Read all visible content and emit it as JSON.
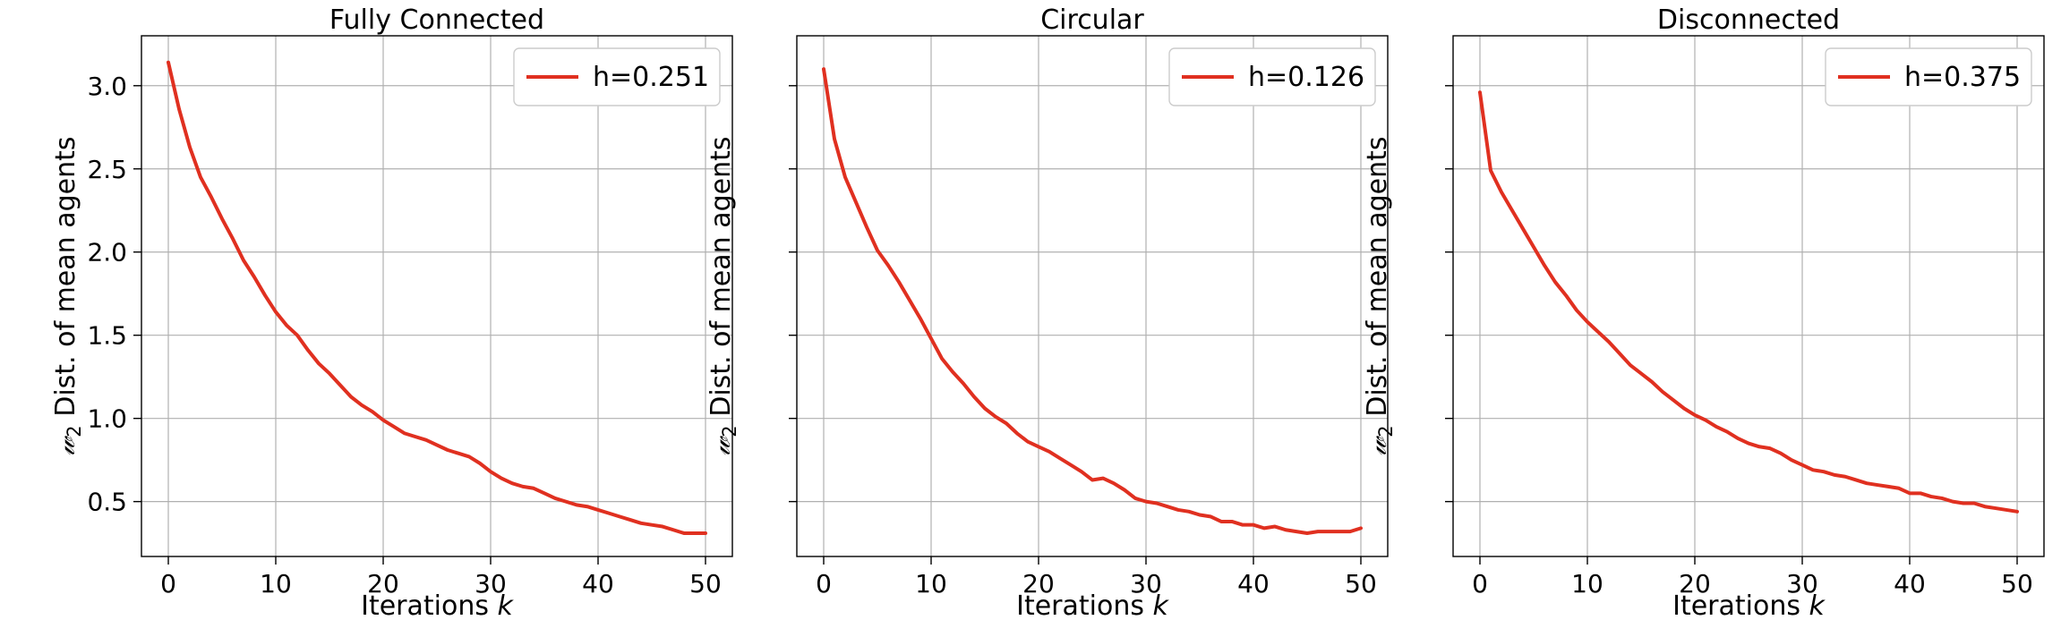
{
  "chart_data": [
    {
      "type": "line",
      "title": "Fully Connected",
      "xlabel": "Iterations k",
      "xlabel_main": "Iterations ",
      "xlabel_var": "k",
      "ylabel": "𝓌2 Dist. of mean agents",
      "ylabel_symbol": "𝓌",
      "ylabel_sub": "2",
      "ylabel_rest": " Dist. of mean agents",
      "xlim": [
        -2.5,
        52.5
      ],
      "ylim": [
        0.17,
        3.3
      ],
      "xticks": [
        0,
        10,
        20,
        30,
        40,
        50
      ],
      "yticks": [
        0.5,
        1.0,
        1.5,
        2.0,
        2.5,
        3.0
      ],
      "ytick_labels": [
        "0.5",
        "1.0",
        "1.5",
        "2.0",
        "2.5",
        "3.0"
      ],
      "show_ytick_labels": true,
      "grid": true,
      "legend_position": "upper right",
      "series": [
        {
          "name": "h=0.251",
          "color": "#e03020",
          "x": [
            0,
            1,
            2,
            3,
            4,
            5,
            6,
            7,
            8,
            9,
            10,
            11,
            12,
            13,
            14,
            15,
            16,
            17,
            18,
            19,
            20,
            21,
            22,
            23,
            24,
            25,
            26,
            27,
            28,
            29,
            30,
            31,
            32,
            33,
            34,
            35,
            36,
            37,
            38,
            39,
            40,
            41,
            42,
            43,
            44,
            45,
            46,
            47,
            48,
            49,
            50
          ],
          "y": [
            3.14,
            2.86,
            2.63,
            2.45,
            2.33,
            2.2,
            2.08,
            1.95,
            1.85,
            1.74,
            1.64,
            1.56,
            1.5,
            1.41,
            1.33,
            1.27,
            1.2,
            1.13,
            1.08,
            1.04,
            0.99,
            0.95,
            0.91,
            0.89,
            0.87,
            0.84,
            0.81,
            0.79,
            0.77,
            0.73,
            0.68,
            0.64,
            0.61,
            0.59,
            0.58,
            0.55,
            0.52,
            0.5,
            0.48,
            0.47,
            0.45,
            0.43,
            0.41,
            0.39,
            0.37,
            0.36,
            0.35,
            0.33,
            0.31,
            0.31,
            0.31
          ]
        }
      ]
    },
    {
      "type": "line",
      "title": "Circular",
      "xlabel": "Iterations k",
      "xlabel_main": "Iterations ",
      "xlabel_var": "k",
      "ylabel": "𝓌2 Dist. of mean agents",
      "ylabel_symbol": "𝓌",
      "ylabel_sub": "2",
      "ylabel_rest": " Dist. of mean agents",
      "xlim": [
        -2.5,
        52.5
      ],
      "ylim": [
        0.17,
        3.3
      ],
      "xticks": [
        0,
        10,
        20,
        30,
        40,
        50
      ],
      "yticks": [
        0.5,
        1.0,
        1.5,
        2.0,
        2.5,
        3.0
      ],
      "ytick_labels": [
        "0.5",
        "1.0",
        "1.5",
        "2.0",
        "2.5",
        "3.0"
      ],
      "show_ytick_labels": false,
      "grid": true,
      "legend_position": "upper right",
      "series": [
        {
          "name": "h=0.126",
          "color": "#e03020",
          "x": [
            0,
            1,
            2,
            3,
            4,
            5,
            6,
            7,
            8,
            9,
            10,
            11,
            12,
            13,
            14,
            15,
            16,
            17,
            18,
            19,
            20,
            21,
            22,
            23,
            24,
            25,
            26,
            27,
            28,
            29,
            30,
            31,
            32,
            33,
            34,
            35,
            36,
            37,
            38,
            39,
            40,
            41,
            42,
            43,
            44,
            45,
            46,
            47,
            48,
            49,
            50
          ],
          "y": [
            3.1,
            2.68,
            2.45,
            2.3,
            2.15,
            2.01,
            1.92,
            1.82,
            1.71,
            1.6,
            1.48,
            1.36,
            1.28,
            1.21,
            1.13,
            1.06,
            1.01,
            0.97,
            0.91,
            0.86,
            0.83,
            0.8,
            0.76,
            0.72,
            0.68,
            0.63,
            0.64,
            0.61,
            0.57,
            0.52,
            0.5,
            0.49,
            0.47,
            0.45,
            0.44,
            0.42,
            0.41,
            0.38,
            0.38,
            0.36,
            0.36,
            0.34,
            0.35,
            0.33,
            0.32,
            0.31,
            0.32,
            0.32,
            0.32,
            0.32,
            0.34
          ]
        }
      ]
    },
    {
      "type": "line",
      "title": "Disconnected",
      "xlabel": "Iterations k",
      "xlabel_main": "Iterations ",
      "xlabel_var": "k",
      "ylabel": "𝓌2 Dist. of mean agents",
      "ylabel_symbol": "𝓌",
      "ylabel_sub": "2",
      "ylabel_rest": " Dist. of mean agents",
      "xlim": [
        -2.5,
        52.5
      ],
      "ylim": [
        0.17,
        3.3
      ],
      "xticks": [
        0,
        10,
        20,
        30,
        40,
        50
      ],
      "yticks": [
        0.5,
        1.0,
        1.5,
        2.0,
        2.5,
        3.0
      ],
      "ytick_labels": [
        "0.5",
        "1.0",
        "1.5",
        "2.0",
        "2.5",
        "3.0"
      ],
      "show_ytick_labels": false,
      "grid": true,
      "legend_position": "upper right",
      "series": [
        {
          "name": "h=0.375",
          "color": "#e03020",
          "x": [
            0,
            1,
            2,
            3,
            4,
            5,
            6,
            7,
            8,
            9,
            10,
            11,
            12,
            13,
            14,
            15,
            16,
            17,
            18,
            19,
            20,
            21,
            22,
            23,
            24,
            25,
            26,
            27,
            28,
            29,
            30,
            31,
            32,
            33,
            34,
            35,
            36,
            37,
            38,
            39,
            40,
            41,
            42,
            43,
            44,
            45,
            46,
            47,
            48,
            49,
            50
          ],
          "y": [
            2.96,
            2.49,
            2.36,
            2.25,
            2.14,
            2.03,
            1.92,
            1.82,
            1.74,
            1.65,
            1.58,
            1.52,
            1.46,
            1.39,
            1.32,
            1.27,
            1.22,
            1.16,
            1.11,
            1.06,
            1.02,
            0.99,
            0.95,
            0.92,
            0.88,
            0.85,
            0.83,
            0.82,
            0.79,
            0.75,
            0.72,
            0.69,
            0.68,
            0.66,
            0.65,
            0.63,
            0.61,
            0.6,
            0.59,
            0.58,
            0.55,
            0.55,
            0.53,
            0.52,
            0.5,
            0.49,
            0.49,
            0.47,
            0.46,
            0.45,
            0.44
          ]
        }
      ]
    }
  ]
}
